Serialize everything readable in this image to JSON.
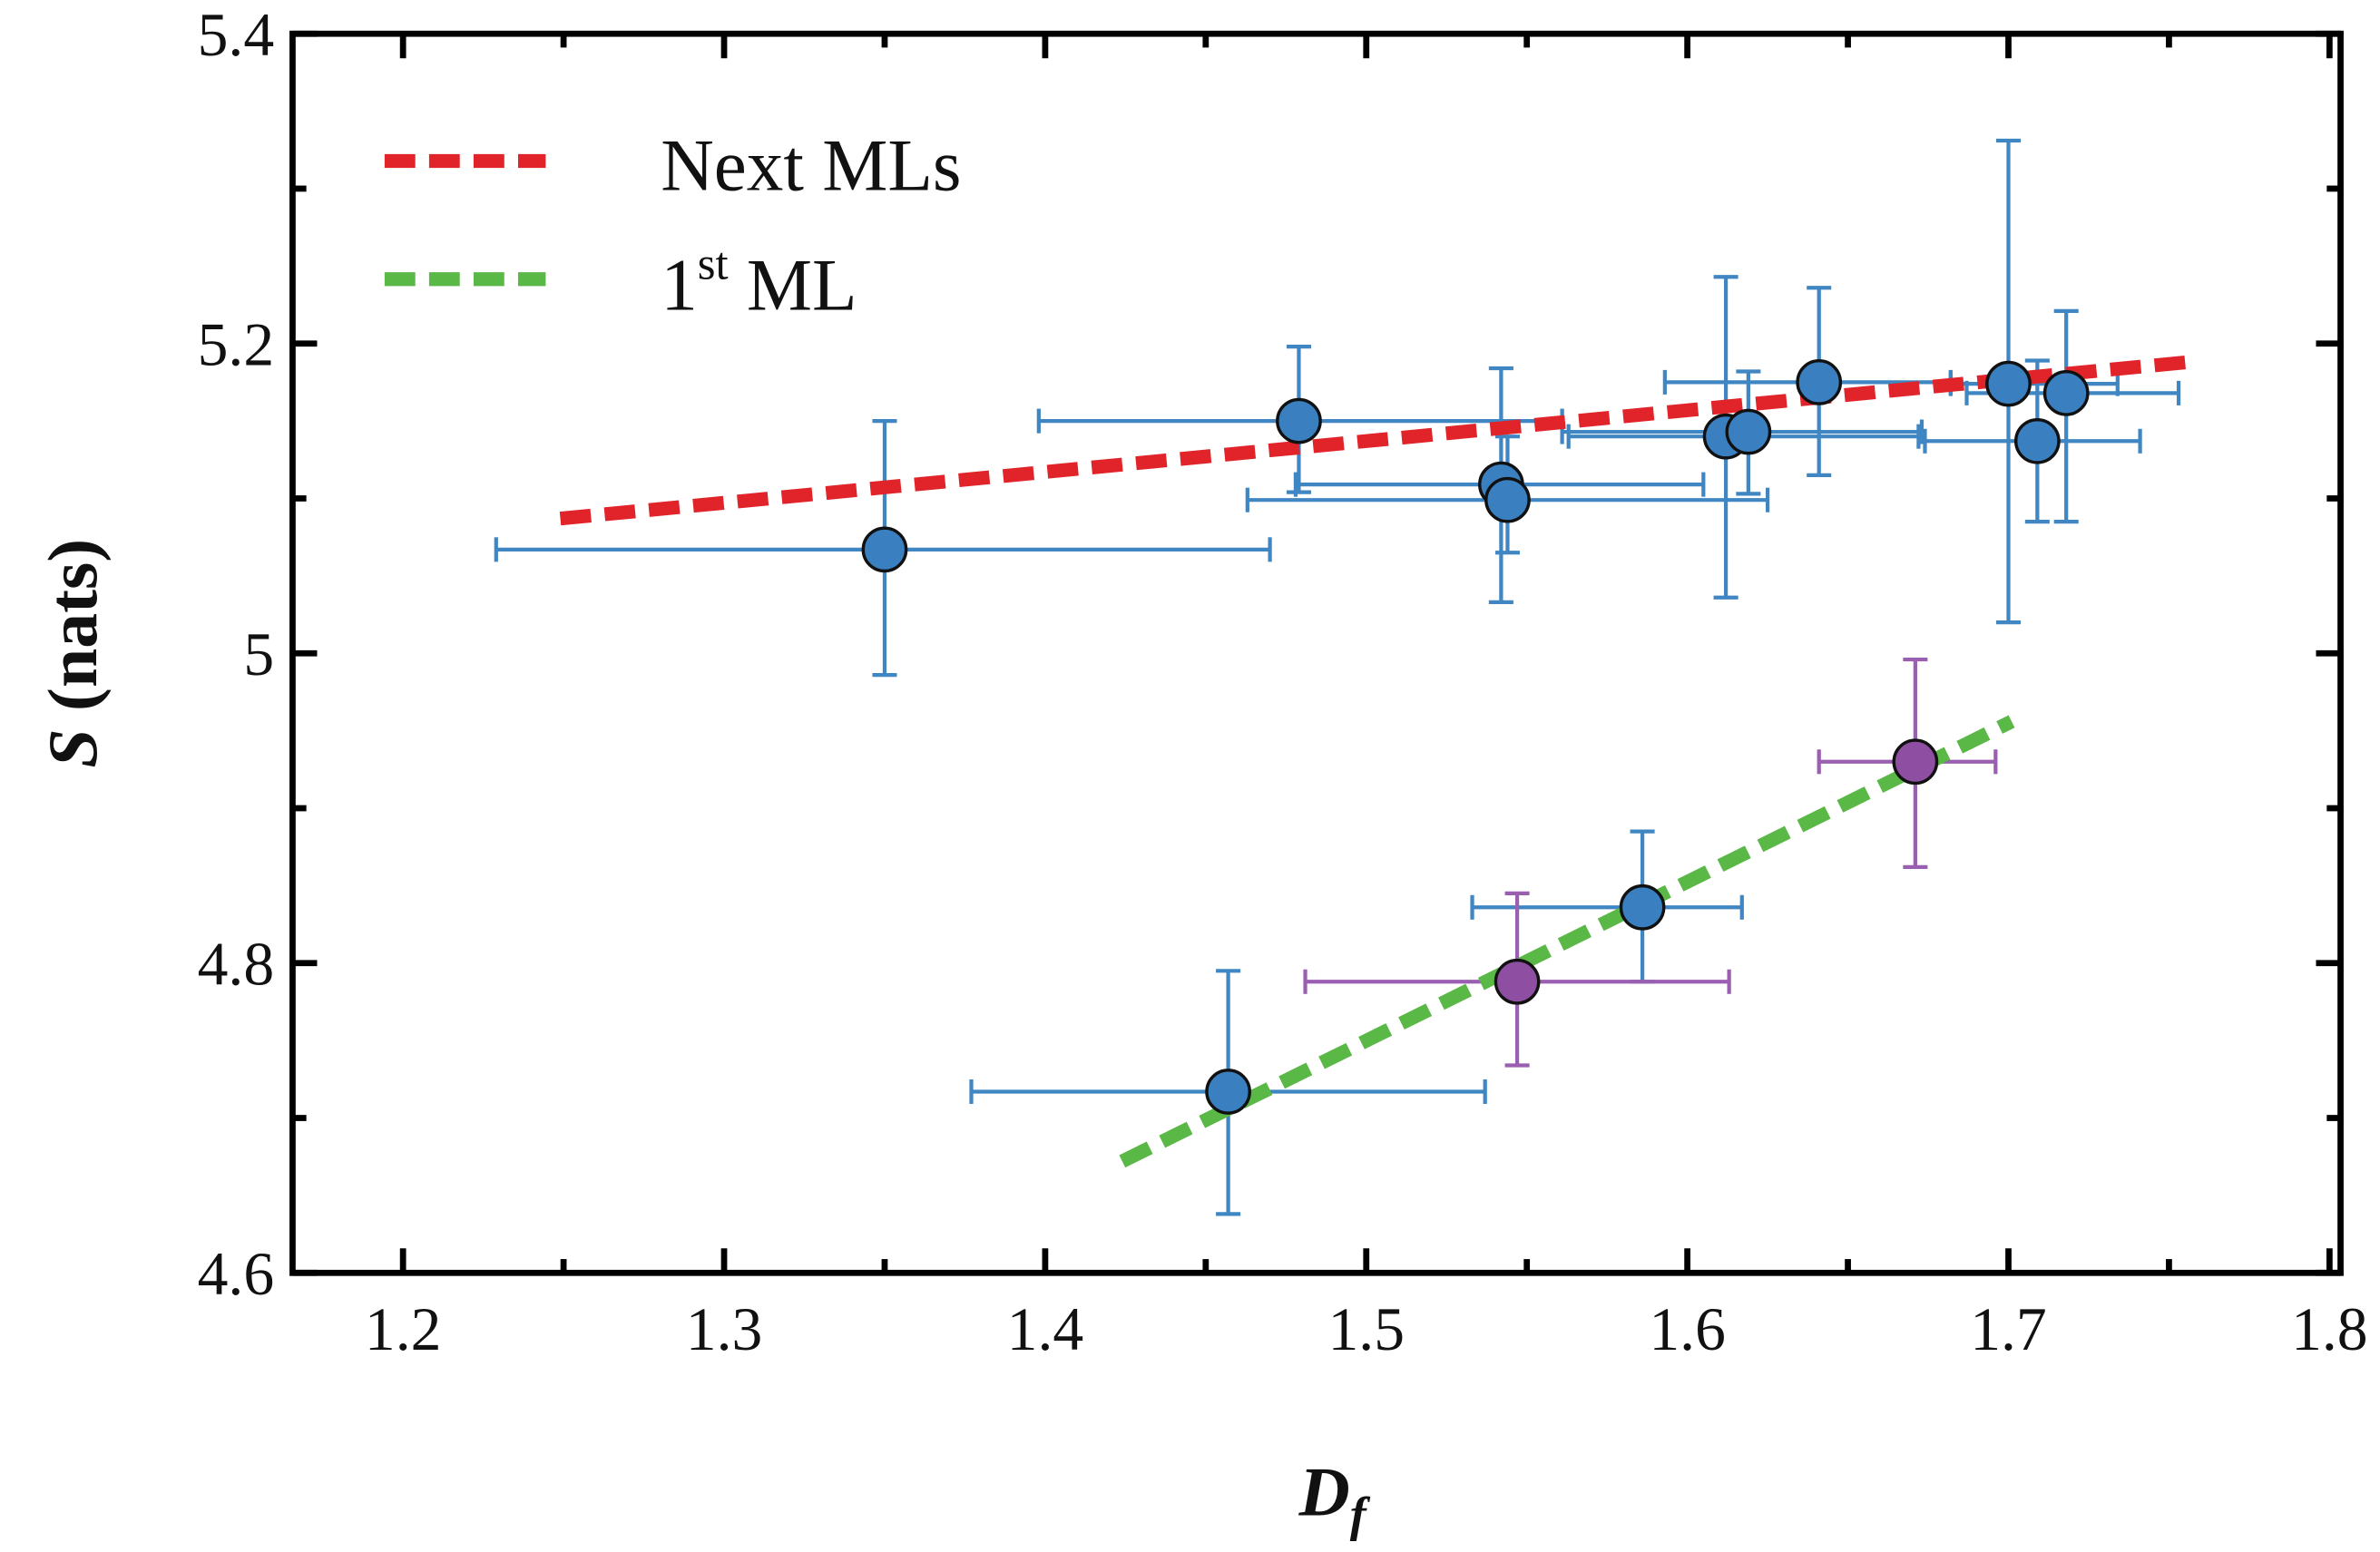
{
  "chart_data": {
    "type": "scatter",
    "title": "",
    "xlabel": "D",
    "xlabel_sub": "f",
    "ylabel_symbol": "S",
    "ylabel_unit": " (nats)",
    "xlim": [
      1.17,
      1.8
    ],
    "ylim": [
      4.6,
      5.4
    ],
    "xticks": [
      "1.2",
      "1.3",
      "1.4",
      "1.5",
      "1.6",
      "1.7",
      "1.8"
    ],
    "xtick_values": [
      1.2,
      1.3,
      1.4,
      1.5,
      1.6,
      1.7,
      1.8
    ],
    "yticks": [
      "4.6",
      "4.8",
      "5",
      "5.2",
      "5.4"
    ],
    "ytick_values": [
      4.6,
      4.8,
      5.0,
      5.2,
      5.4
    ],
    "grid": false,
    "legend_position": "top-left",
    "colors": {
      "blue": "#3a7fc0",
      "blue_err": "#3f86c2",
      "purple": "#8e4fa3",
      "purple_err": "#9a5fb0",
      "red": "#e0242a",
      "green": "#5ab847"
    },
    "legend": [
      {
        "label": "Next MLs",
        "sup": "",
        "label_rest": "",
        "color": "#e0242a"
      },
      {
        "label": "1",
        "sup": "st",
        "label_rest": " ML",
        "color": "#5ab847"
      }
    ],
    "fits": [
      {
        "name": "Next MLs",
        "color": "#e0242a",
        "x": [
          1.249,
          1.756
        ],
        "y": [
          5.087,
          5.188
        ]
      },
      {
        "name": "1st ML",
        "color": "#5ab847",
        "x": [
          1.424,
          1.701
        ],
        "y": [
          4.672,
          4.956
        ]
      }
    ],
    "points": [
      {
        "group": "blue",
        "x": 1.35,
        "y": 5.067,
        "xerr": [
          1.229,
          1.47
        ],
        "yerr": [
          4.986,
          5.15
        ]
      },
      {
        "group": "blue",
        "x": 1.479,
        "y": 5.15,
        "xerr": [
          1.398,
          1.561
        ],
        "yerr": [
          5.104,
          5.198
        ]
      },
      {
        "group": "blue",
        "x": 1.542,
        "y": 5.109,
        "xerr": [
          1.478,
          1.605
        ],
        "yerr": [
          5.033,
          5.184
        ]
      },
      {
        "group": "blue",
        "x": 1.544,
        "y": 5.099,
        "xerr": [
          1.463,
          1.625
        ],
        "yerr": [
          5.065,
          5.14
        ]
      },
      {
        "group": "blue",
        "x": 1.612,
        "y": 5.14,
        "xerr": [
          1.563,
          1.672
        ],
        "yerr": [
          5.036,
          5.243
        ]
      },
      {
        "group": "blue",
        "x": 1.619,
        "y": 5.143,
        "xerr": [
          1.561,
          1.673
        ],
        "yerr": [
          5.103,
          5.182
        ]
      },
      {
        "group": "blue",
        "x": 1.641,
        "y": 5.175,
        "xerr": [
          1.593,
          1.682
        ],
        "yerr": [
          5.115,
          5.236
        ]
      },
      {
        "group": "blue",
        "x": 1.7,
        "y": 5.174,
        "xerr": [
          1.682,
          1.734
        ],
        "yerr": [
          5.02,
          5.331
        ]
      },
      {
        "group": "blue",
        "x": 1.709,
        "y": 5.137,
        "xerr": [
          1.674,
          1.741
        ],
        "yerr": [
          5.085,
          5.189
        ]
      },
      {
        "group": "blue",
        "x": 1.718,
        "y": 5.168,
        "xerr": [
          1.687,
          1.753
        ],
        "yerr": [
          5.085,
          5.221
        ]
      },
      {
        "group": "blue",
        "x": 1.586,
        "y": 4.836,
        "xerr": [
          1.533,
          1.617
        ],
        "yerr": [
          4.788,
          4.885
        ]
      },
      {
        "group": "blue",
        "x": 1.457,
        "y": 4.717,
        "xerr": [
          1.377,
          1.537
        ],
        "yerr": [
          4.638,
          4.795
        ]
      },
      {
        "group": "purple",
        "x": 1.547,
        "y": 4.788,
        "xerr": [
          1.481,
          1.613
        ],
        "yerr": [
          4.734,
          4.845
        ]
      },
      {
        "group": "purple",
        "x": 1.671,
        "y": 4.93,
        "xerr": [
          1.641,
          1.696
        ],
        "yerr": [
          4.862,
          4.996
        ]
      }
    ]
  }
}
